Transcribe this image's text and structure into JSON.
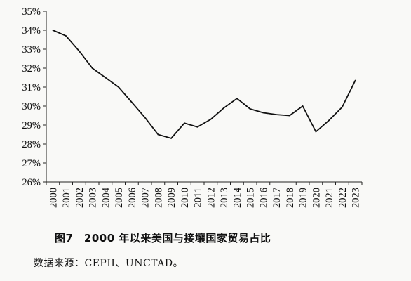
{
  "chart_data": {
    "type": "line",
    "x": [
      "2000",
      "2001",
      "2002",
      "2003",
      "2004",
      "2005",
      "2006",
      "2007",
      "2008",
      "2009",
      "2010",
      "2011",
      "2012",
      "2013",
      "2014",
      "2015",
      "2016",
      "2017",
      "2018",
      "2019",
      "2020",
      "2021",
      "2022",
      "2023"
    ],
    "series": [
      {
        "values": [
          34.0,
          33.7,
          32.9,
          32.0,
          31.5,
          31.0,
          30.2,
          29.4,
          28.5,
          28.3,
          29.1,
          28.9,
          29.3,
          29.9,
          30.4,
          29.85,
          29.65,
          29.55,
          29.5,
          30.0,
          28.65,
          29.25,
          29.95,
          31.35
        ]
      }
    ],
    "ylim": [
      26,
      35
    ],
    "yticks": [
      "26%",
      "27%",
      "28%",
      "29%",
      "30%",
      "31%",
      "32%",
      "33%",
      "34%",
      "35%"
    ],
    "grid": false,
    "line_color": "#111111"
  },
  "caption": "图7　2000 年以来美国与接壤国家贸易占比",
  "source": "数据来源：CEPII、UNCTAD。"
}
